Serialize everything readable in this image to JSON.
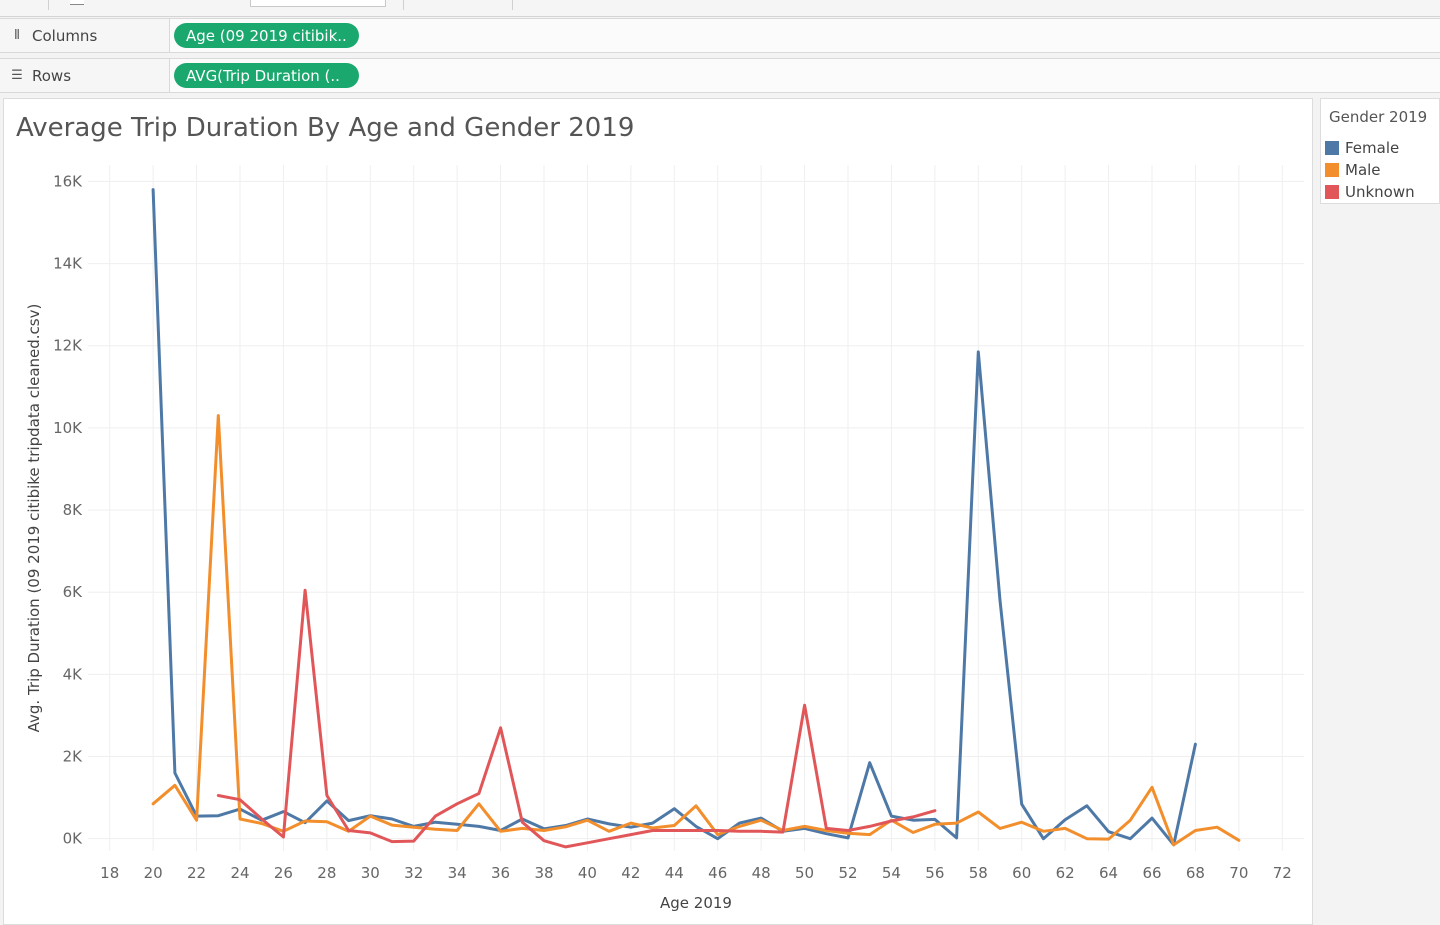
{
  "shelves": {
    "columns": {
      "label": "Columns",
      "icon": "columns-icon",
      "pill": "Age (09 2019 citibik.."
    },
    "rows": {
      "label": "Rows",
      "icon": "rows-icon",
      "pill": "AVG(Trip Duration (.."
    }
  },
  "colors": {
    "pill": "#1aa86e",
    "female": "#4e79a7",
    "male": "#f28e2b",
    "unknown": "#e15759"
  },
  "legend": {
    "title": "Gender 2019",
    "items": [
      {
        "label": "Female",
        "color": "#4e79a7"
      },
      {
        "label": "Male",
        "color": "#f28e2b"
      },
      {
        "label": "Unknown",
        "color": "#e15759"
      }
    ]
  },
  "chart_data": {
    "type": "line",
    "title": "Average Trip Duration By Age and Gender 2019",
    "xlabel": "Age 2019",
    "ylabel": "Avg. Trip Duration (09 2019 citibike tripdata cleaned.csv)",
    "xlim": [
      17,
      73
    ],
    "ylim": [
      -300,
      16400
    ],
    "x_ticks": [
      18,
      20,
      22,
      24,
      26,
      28,
      30,
      32,
      34,
      36,
      38,
      40,
      42,
      44,
      46,
      48,
      50,
      52,
      54,
      56,
      58,
      60,
      62,
      64,
      66,
      68,
      70,
      72
    ],
    "y_ticks": [
      0,
      2000,
      4000,
      6000,
      8000,
      10000,
      12000,
      14000,
      16000
    ],
    "y_tick_labels": [
      "0K",
      "2K",
      "4K",
      "6K",
      "8K",
      "10K",
      "12K",
      "14K",
      "16K"
    ],
    "grid": true,
    "legend_position": "right",
    "series": [
      {
        "name": "Female",
        "color": "#4e79a7",
        "points": [
          [
            20,
            15800
          ],
          [
            21,
            1600
          ],
          [
            22,
            550
          ],
          [
            23,
            560
          ],
          [
            24,
            720
          ],
          [
            25,
            450
          ],
          [
            26,
            660
          ],
          [
            27,
            390
          ],
          [
            28,
            920
          ],
          [
            29,
            440
          ],
          [
            30,
            560
          ],
          [
            31,
            480
          ],
          [
            32,
            300
          ],
          [
            33,
            400
          ],
          [
            34,
            350
          ],
          [
            35,
            300
          ],
          [
            36,
            200
          ],
          [
            37,
            480
          ],
          [
            38,
            240
          ],
          [
            39,
            320
          ],
          [
            40,
            480
          ],
          [
            41,
            360
          ],
          [
            42,
            280
          ],
          [
            43,
            380
          ],
          [
            44,
            730
          ],
          [
            45,
            300
          ],
          [
            46,
            0
          ],
          [
            47,
            380
          ],
          [
            48,
            500
          ],
          [
            49,
            180
          ],
          [
            50,
            250
          ],
          [
            51,
            120
          ],
          [
            52,
            20
          ],
          [
            53,
            1850
          ],
          [
            54,
            550
          ],
          [
            55,
            450
          ],
          [
            56,
            470
          ],
          [
            57,
            20
          ],
          [
            58,
            11850
          ],
          [
            59,
            5800
          ],
          [
            60,
            840
          ],
          [
            61,
            0
          ],
          [
            62,
            460
          ],
          [
            63,
            800
          ],
          [
            64,
            170
          ],
          [
            65,
            0
          ],
          [
            66,
            500
          ],
          [
            67,
            -150
          ],
          [
            68,
            2300
          ]
        ]
      },
      {
        "name": "Male",
        "color": "#f28e2b",
        "points": [
          [
            20,
            850
          ],
          [
            21,
            1300
          ],
          [
            22,
            450
          ],
          [
            23,
            10300
          ],
          [
            24,
            480
          ],
          [
            25,
            370
          ],
          [
            26,
            180
          ],
          [
            27,
            430
          ],
          [
            28,
            410
          ],
          [
            29,
            180
          ],
          [
            30,
            550
          ],
          [
            31,
            330
          ],
          [
            32,
            280
          ],
          [
            33,
            230
          ],
          [
            34,
            200
          ],
          [
            35,
            850
          ],
          [
            36,
            180
          ],
          [
            37,
            250
          ],
          [
            38,
            200
          ],
          [
            39,
            290
          ],
          [
            40,
            450
          ],
          [
            41,
            180
          ],
          [
            42,
            380
          ],
          [
            43,
            260
          ],
          [
            44,
            320
          ],
          [
            45,
            800
          ],
          [
            46,
            100
          ],
          [
            47,
            300
          ],
          [
            48,
            450
          ],
          [
            49,
            200
          ],
          [
            50,
            300
          ],
          [
            51,
            200
          ],
          [
            52,
            130
          ],
          [
            53,
            100
          ],
          [
            54,
            450
          ],
          [
            55,
            150
          ],
          [
            56,
            350
          ],
          [
            57,
            380
          ],
          [
            58,
            650
          ],
          [
            59,
            250
          ],
          [
            60,
            400
          ],
          [
            61,
            180
          ],
          [
            62,
            250
          ],
          [
            63,
            0
          ],
          [
            64,
            -10
          ],
          [
            65,
            450
          ],
          [
            66,
            1250
          ],
          [
            67,
            -150
          ],
          [
            68,
            200
          ],
          [
            69,
            280
          ],
          [
            70,
            -40
          ]
        ]
      },
      {
        "name": "Unknown",
        "color": "#e15759",
        "points": [
          [
            23,
            1050
          ],
          [
            24,
            950
          ],
          [
            25,
            480
          ],
          [
            26,
            40
          ],
          [
            27,
            6050
          ],
          [
            28,
            1050
          ],
          [
            29,
            200
          ],
          [
            30,
            140
          ],
          [
            31,
            -70
          ],
          [
            32,
            -60
          ],
          [
            33,
            550
          ],
          [
            34,
            850
          ],
          [
            35,
            1100
          ],
          [
            36,
            2700
          ],
          [
            37,
            400
          ],
          [
            38,
            -50
          ],
          [
            39,
            -200
          ],
          [
            40,
            -100
          ],
          [
            41,
            0
          ],
          [
            42,
            100
          ],
          [
            43,
            200
          ],
          [
            44,
            200
          ],
          [
            45,
            200
          ],
          [
            46,
            200
          ],
          [
            47,
            180
          ],
          [
            48,
            180
          ],
          [
            49,
            160
          ],
          [
            50,
            3250
          ],
          [
            51,
            250
          ],
          [
            52,
            200
          ],
          [
            53,
            300
          ],
          [
            54,
            430
          ],
          [
            55,
            530
          ],
          [
            56,
            680
          ]
        ]
      }
    ]
  }
}
